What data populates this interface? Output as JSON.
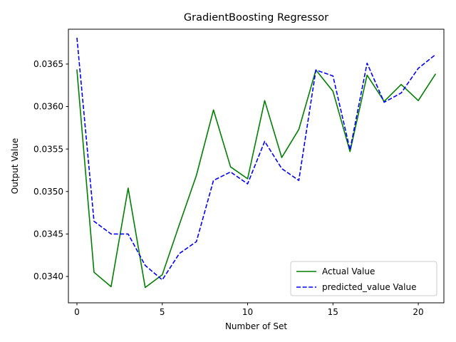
{
  "chart_data": {
    "type": "line",
    "title": "GradientBoosting Regressor",
    "xlabel": "Number of Set",
    "ylabel": "Output Value",
    "x": [
      0,
      1,
      2,
      3,
      4,
      5,
      6,
      7,
      8,
      9,
      10,
      11,
      12,
      13,
      14,
      15,
      16,
      17,
      18,
      19,
      20,
      21
    ],
    "xlim": [
      -0.5,
      21.5
    ],
    "ylim": [
      0.03369,
      0.03691
    ],
    "xticks": [
      0,
      5,
      10,
      15,
      20
    ],
    "xtick_labels": [
      "0",
      "5",
      "10",
      "15",
      "20"
    ],
    "yticks": [
      0.034,
      0.0345,
      0.035,
      0.0355,
      0.036,
      0.0365
    ],
    "ytick_labels": [
      "0.0340",
      "0.0345",
      "0.0350",
      "0.0355",
      "0.0360",
      "0.0365"
    ],
    "grid": false,
    "legend_position": "lower right",
    "series": [
      {
        "name": "Actual Value",
        "color": "#008000",
        "style": "solid",
        "values": [
          0.03643,
          0.03405,
          0.03388,
          0.03504,
          0.03387,
          0.03402,
          0.03461,
          0.03519,
          0.03596,
          0.03529,
          0.03515,
          0.03607,
          0.0354,
          0.03573,
          0.03643,
          0.03618,
          0.03547,
          0.03637,
          0.03606,
          0.03626,
          0.03607,
          0.03638
        ]
      },
      {
        "name": "predicted_value Value",
        "color": "#0000ff",
        "style": "dashed",
        "values": [
          0.03681,
          0.03465,
          0.0345,
          0.0345,
          0.03413,
          0.03396,
          0.03427,
          0.03441,
          0.03513,
          0.03523,
          0.03509,
          0.03559,
          0.03527,
          0.03513,
          0.03643,
          0.03636,
          0.03549,
          0.03651,
          0.03605,
          0.03616,
          0.03645,
          0.03661
        ]
      }
    ]
  }
}
